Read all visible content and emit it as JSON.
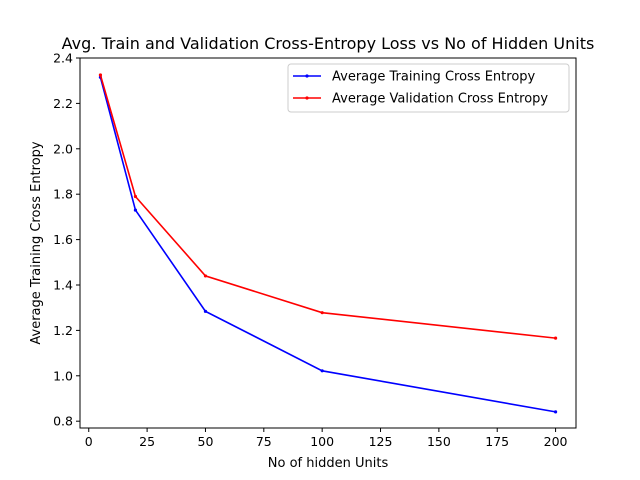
{
  "chart_data": {
    "type": "line",
    "title": "Avg. Train and Validation Cross-Entropy Loss vs No of Hidden Units",
    "xlabel": "No of hidden Units",
    "ylabel": "Average Training Cross Entropy",
    "x": [
      5,
      20,
      50,
      100,
      200
    ],
    "xlim": [
      -3.75,
      208.75
    ],
    "ylim": [
      0.77,
      2.4
    ],
    "xticks": [
      0,
      25,
      50,
      75,
      100,
      125,
      150,
      175,
      200
    ],
    "yticks": [
      0.8,
      1.0,
      1.2,
      1.4,
      1.6,
      1.8,
      2.0,
      2.2,
      2.4
    ],
    "grid": false,
    "legend_position": "top-right",
    "series": [
      {
        "name": "Average Training Cross Entropy",
        "color": "#0000ff",
        "values": [
          2.315,
          1.73,
          1.284,
          1.022,
          0.841
        ]
      },
      {
        "name": "Average Validation Cross Entropy",
        "color": "#ff0000",
        "values": [
          2.325,
          1.79,
          1.44,
          1.278,
          1.166
        ]
      }
    ]
  }
}
